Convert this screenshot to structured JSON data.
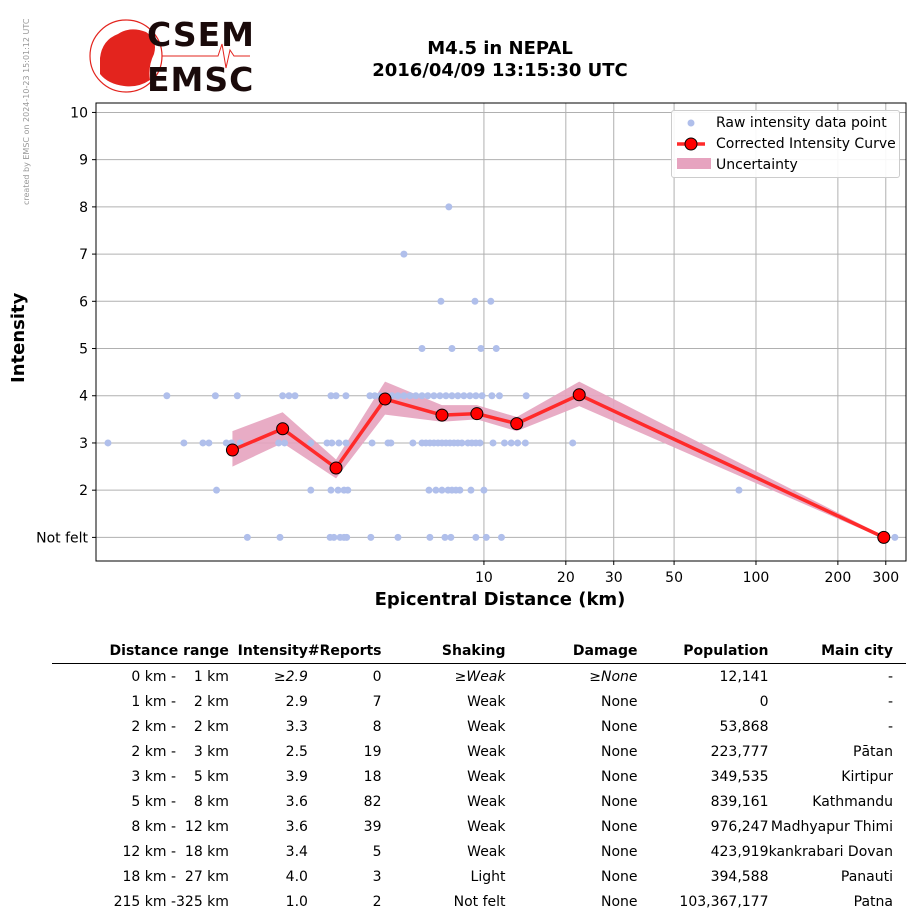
{
  "credit": "created by EMSC on 2024-10-23 15:01:12 UTC",
  "logo": {
    "line1": "CSEM",
    "line2": "EMSC"
  },
  "title": {
    "line1": "M4.5 in NEPAL",
    "line2": "2016/04/09 13:15:30 UTC"
  },
  "chart_data": {
    "type": "scatter",
    "xlabel": "Epicentral Distance (km)",
    "ylabel": "Intensity",
    "xscale": "log",
    "xlim": [
      0.375,
      356
    ],
    "ylim": [
      0.5,
      10.2
    ],
    "xticks": [
      10,
      20,
      30,
      50,
      100,
      200,
      300
    ],
    "xtick_labels": [
      "10",
      "20",
      "30",
      "50",
      "100",
      "200",
      "300"
    ],
    "yticks": [
      1,
      2,
      3,
      4,
      5,
      6,
      7,
      8,
      9,
      10
    ],
    "ytick_labels": [
      "Not felt",
      "2",
      "3",
      "4",
      "5",
      "6",
      "7",
      "8",
      "9",
      "10"
    ],
    "grid": true,
    "legend": {
      "placement": "top-right",
      "entries": [
        "Raw intensity data point",
        "Corrected Intensity Curve",
        "Uncertainty"
      ]
    },
    "colors": {
      "raw": "#b0bfeb",
      "curve": "#ff2a2a",
      "marker": "#ff0000",
      "band": "#e6a3bf"
    },
    "raw_points": [
      [
        0.683,
        4
      ],
      [
        1.03,
        4
      ],
      [
        1.24,
        4
      ],
      [
        1.82,
        4
      ],
      [
        1.92,
        4
      ],
      [
        2.02,
        4
      ],
      [
        2.74,
        4
      ],
      [
        2.86,
        4
      ],
      [
        3.11,
        4
      ],
      [
        3.81,
        4
      ],
      [
        3.97,
        4
      ],
      [
        4.15,
        4
      ],
      [
        4.36,
        4
      ],
      [
        4.59,
        4
      ],
      [
        4.83,
        4
      ],
      [
        5.08,
        4
      ],
      [
        5.35,
        4
      ],
      [
        5.62,
        4
      ],
      [
        5.92,
        4
      ],
      [
        6.22,
        4
      ],
      [
        6.55,
        4
      ],
      [
        6.89,
        4
      ],
      [
        7.25,
        4
      ],
      [
        7.63,
        4
      ],
      [
        8.02,
        4
      ],
      [
        8.44,
        4
      ],
      [
        8.88,
        4
      ],
      [
        9.34,
        4
      ],
      [
        9.84,
        4
      ],
      [
        10.7,
        4
      ],
      [
        11.4,
        4
      ],
      [
        14.3,
        4
      ],
      [
        22.4,
        4
      ],
      [
        0.415,
        3
      ],
      [
        0.789,
        3
      ],
      [
        0.927,
        3
      ],
      [
        0.975,
        3
      ],
      [
        1.13,
        3
      ],
      [
        1.18,
        3
      ],
      [
        1.27,
        3
      ],
      [
        1.76,
        3
      ],
      [
        1.85,
        3
      ],
      [
        2.31,
        3
      ],
      [
        2.65,
        3
      ],
      [
        2.76,
        3
      ],
      [
        2.93,
        3
      ],
      [
        3.11,
        3
      ],
      [
        3.88,
        3
      ],
      [
        4.44,
        3
      ],
      [
        4.55,
        3
      ],
      [
        5.48,
        3
      ],
      [
        5.92,
        3
      ],
      [
        6.12,
        3
      ],
      [
        6.33,
        3
      ],
      [
        6.55,
        3
      ],
      [
        6.78,
        3
      ],
      [
        7.01,
        3
      ],
      [
        7.25,
        3
      ],
      [
        7.5,
        3
      ],
      [
        7.76,
        3
      ],
      [
        8.02,
        3
      ],
      [
        8.3,
        3
      ],
      [
        8.73,
        3
      ],
      [
        9.03,
        3
      ],
      [
        9.34,
        3
      ],
      [
        9.67,
        3
      ],
      [
        10.8,
        3
      ],
      [
        11.9,
        3
      ],
      [
        12.6,
        3
      ],
      [
        13.3,
        3
      ],
      [
        14.2,
        3
      ],
      [
        21.2,
        3
      ],
      [
        1.04,
        2
      ],
      [
        2.31,
        2
      ],
      [
        2.74,
        2
      ],
      [
        2.91,
        2
      ],
      [
        3.06,
        2
      ],
      [
        3.16,
        2
      ],
      [
        6.28,
        2
      ],
      [
        6.66,
        2
      ],
      [
        7.01,
        2
      ],
      [
        7.38,
        2
      ],
      [
        7.63,
        2
      ],
      [
        7.89,
        2
      ],
      [
        8.16,
        2
      ],
      [
        8.96,
        2
      ],
      [
        10.0,
        2
      ],
      [
        86.6,
        2
      ],
      [
        1.35,
        1
      ],
      [
        1.78,
        1
      ],
      [
        2.72,
        1
      ],
      [
        2.81,
        1
      ],
      [
        2.96,
        1
      ],
      [
        3.06,
        1
      ],
      [
        3.13,
        1
      ],
      [
        3.84,
        1
      ],
      [
        4.83,
        1
      ],
      [
        6.33,
        1
      ],
      [
        7.19,
        1
      ],
      [
        7.56,
        1
      ],
      [
        9.34,
        1
      ],
      [
        10.2,
        1
      ],
      [
        11.6,
        1
      ],
      [
        324,
        1
      ],
      [
        7.43,
        8
      ],
      [
        5.08,
        7
      ],
      [
        6.95,
        6
      ],
      [
        9.27,
        6
      ],
      [
        10.6,
        6
      ],
      [
        5.92,
        5
      ],
      [
        7.63,
        5
      ],
      [
        9.75,
        5
      ],
      [
        11.1,
        5
      ]
    ],
    "curve": [
      {
        "x": 1.19,
        "y": 2.85,
        "lo": 2.5,
        "hi": 3.25
      },
      {
        "x": 1.82,
        "y": 3.3,
        "lo": 3.0,
        "hi": 3.65
      },
      {
        "x": 2.86,
        "y": 2.47,
        "lo": 2.25,
        "hi": 2.65
      },
      {
        "x": 4.33,
        "y": 3.93,
        "lo": 3.6,
        "hi": 4.3
      },
      {
        "x": 7.01,
        "y": 3.59,
        "lo": 3.45,
        "hi": 3.8
      },
      {
        "x": 9.42,
        "y": 3.62,
        "lo": 3.5,
        "hi": 3.8
      },
      {
        "x": 13.2,
        "y": 3.41,
        "lo": 3.25,
        "hi": 3.55
      },
      {
        "x": 22.4,
        "y": 4.02,
        "lo": 3.78,
        "hi": 4.3
      },
      {
        "x": 295,
        "y": 1.0,
        "lo": 0.97,
        "hi": 1.03
      }
    ]
  },
  "table": {
    "headers": [
      "Distance range",
      "Intensity",
      "#Reports",
      "Shaking",
      "Damage",
      "Population",
      "Main city"
    ],
    "rows": [
      [
        "0 km -",
        "1 km",
        "≥2.9",
        "0",
        "≥Weak",
        "≥None",
        "12,141",
        "-"
      ],
      [
        "1 km -",
        "2 km",
        "2.9",
        "7",
        "Weak",
        "None",
        "0",
        "-"
      ],
      [
        "2 km -",
        "2 km",
        "3.3",
        "8",
        "Weak",
        "None",
        "53,868",
        "-"
      ],
      [
        "2 km -",
        "3 km",
        "2.5",
        "19",
        "Weak",
        "None",
        "223,777",
        "Pātan"
      ],
      [
        "3 km -",
        "5 km",
        "3.9",
        "18",
        "Weak",
        "None",
        "349,535",
        "Kirtipur"
      ],
      [
        "5 km -",
        "8 km",
        "3.6",
        "82",
        "Weak",
        "None",
        "839,161",
        "Kathmandu"
      ],
      [
        "8 km -",
        "12 km",
        "3.6",
        "39",
        "Weak",
        "None",
        "976,247",
        "Madhyapur Thimi"
      ],
      [
        "12 km -",
        "18 km",
        "3.4",
        "5",
        "Weak",
        "None",
        "423,919",
        "kankrabari Dovan"
      ],
      [
        "18 km -",
        "27 km",
        "4.0",
        "3",
        "Light",
        "None",
        "394,588",
        "Panauti"
      ],
      [
        "215 km -",
        "325 km",
        "1.0",
        "2",
        "Not felt",
        "None",
        "103,367,177",
        "Patna"
      ]
    ]
  }
}
